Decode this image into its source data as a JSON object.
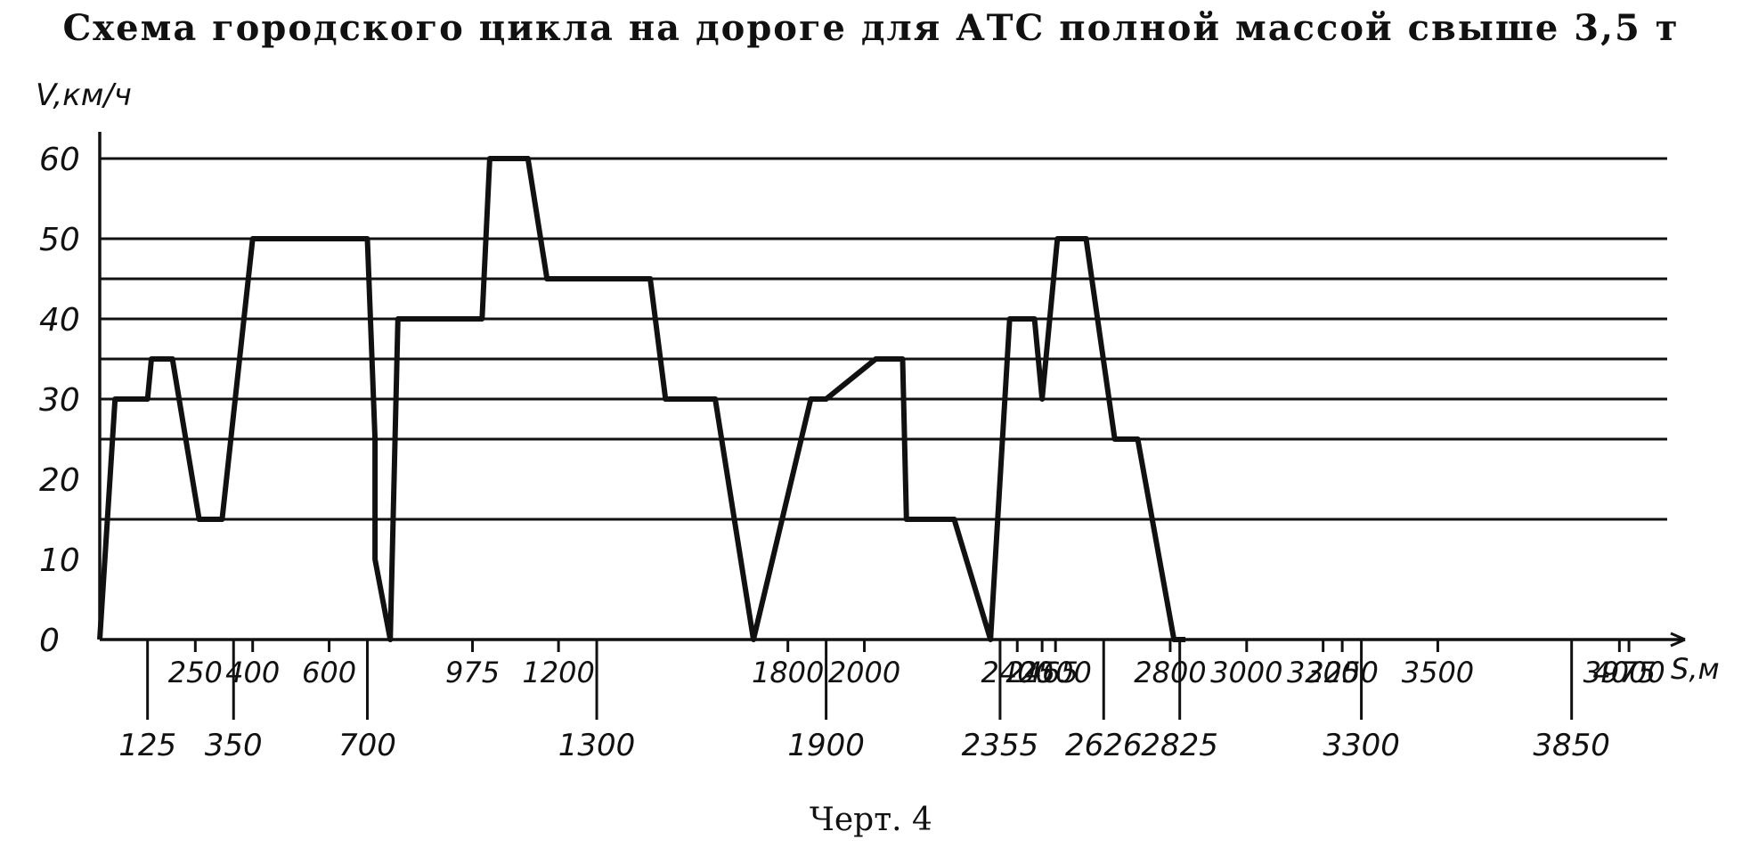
{
  "title": "Схема городского цикла на дороге для АТС полной массой свыше 3,5 т",
  "caption": "Черт. 4",
  "chart_data": {
    "type": "line",
    "title": "Схема городского цикла на дороге для АТС полной массой свыше 3,5 т",
    "xlabel": "S,м",
    "ylabel": "V,км/ч",
    "xlim": [
      0,
      4100
    ],
    "ylim": [
      0,
      60
    ],
    "yticks": [
      "0",
      "10",
      "20",
      "30",
      "40",
      "50",
      "60"
    ],
    "ytick_values": [
      0,
      10,
      20,
      30,
      40,
      50,
      60
    ],
    "grid_levels": [
      15,
      25,
      30,
      35,
      40,
      45,
      50,
      60
    ],
    "x_labels_upper": [
      {
        "x": 250,
        "label": "250"
      },
      {
        "x": 400,
        "label": "400"
      },
      {
        "x": 600,
        "label": "600"
      },
      {
        "x": 975,
        "label": "975"
      },
      {
        "x": 1200,
        "label": "1200"
      },
      {
        "x": 1800,
        "label": "1800"
      },
      {
        "x": 2000,
        "label": "2000"
      },
      {
        "x": 2400,
        "label": "2400"
      },
      {
        "x": 2465,
        "label": "2465"
      },
      {
        "x": 2500,
        "label": "2500"
      },
      {
        "x": 2800,
        "label": "2800"
      },
      {
        "x": 3000,
        "label": "3000"
      },
      {
        "x": 3200,
        "label": "3200"
      },
      {
        "x": 3250,
        "label": "3250"
      },
      {
        "x": 3500,
        "label": "3500"
      },
      {
        "x": 3975,
        "label": "3975"
      },
      {
        "x": 4000,
        "label": "4000"
      }
    ],
    "x_labels_lower": [
      {
        "x": 125,
        "label": "125"
      },
      {
        "x": 350,
        "label": "350"
      },
      {
        "x": 700,
        "label": "700"
      },
      {
        "x": 1300,
        "label": "1300"
      },
      {
        "x": 1900,
        "label": "1900"
      },
      {
        "x": 2355,
        "label": "2355"
      },
      {
        "x": 2626,
        "label": "2626"
      },
      {
        "x": 2825,
        "label": "2825"
      },
      {
        "x": 3300,
        "label": "3300"
      },
      {
        "x": 3850,
        "label": "3850"
      }
    ],
    "series": [
      {
        "x": [
          0,
          40,
          125,
          135,
          160,
          190,
          260,
          320,
          400,
          460,
          700,
          720,
          720,
          760,
          780,
          900,
          1000,
          1020,
          1090,
          1120,
          1170,
          1270,
          1440,
          1480,
          1610,
          1710,
          1860,
          1900,
          2030,
          2100,
          2110,
          2235,
          2330,
          2380,
          2445,
          2465,
          2505,
          2580,
          2655,
          2715,
          2810,
          2840
        ],
        "y": [
          0,
          30,
          30,
          35,
          35,
          35,
          15,
          15,
          50,
          50,
          50,
          25,
          10,
          0,
          40,
          40,
          40,
          60,
          60,
          60,
          45,
          45,
          45,
          30,
          30,
          0,
          30,
          30,
          35,
          35,
          15,
          15,
          0,
          40,
          40,
          30,
          50,
          50,
          25,
          25,
          0,
          0
        ]
      }
    ]
  }
}
